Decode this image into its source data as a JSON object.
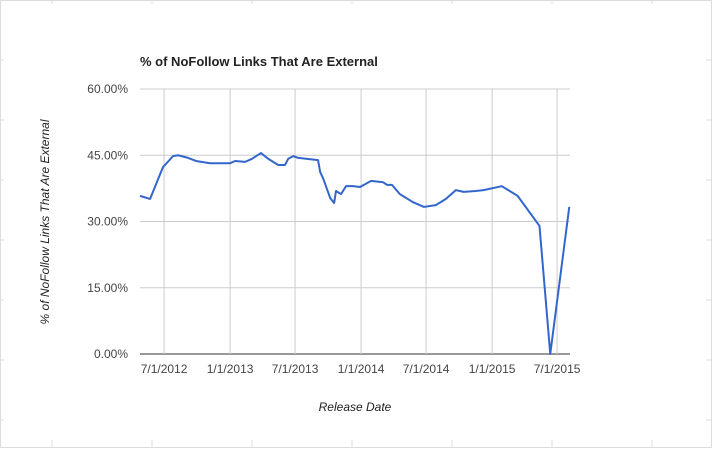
{
  "chart_data": {
    "type": "line",
    "title": "% of NoFollow Links That Are External",
    "y_label": "% of NoFollow Links That Are External",
    "x_label": "Release Date",
    "x": [
      "2012-04-25",
      "2012-05-23",
      "2012-06-28",
      "2012-07-26",
      "2012-08-09",
      "2012-09-06",
      "2012-09-28",
      "2012-11-06",
      "2013-01-01",
      "2013-01-15",
      "2013-02-12",
      "2013-03-03",
      "2013-03-28",
      "2013-04-17",
      "2013-05-15",
      "2013-06-03",
      "2013-06-12",
      "2013-06-26",
      "2013-07-10",
      "2013-09-03",
      "2013-09-09",
      "2013-09-17",
      "2013-10-07",
      "2013-10-18",
      "2013-10-23",
      "2013-11-06",
      "2013-11-20",
      "2013-12-10",
      "2013-12-29",
      "2014-01-29",
      "2014-03-03",
      "2014-03-14",
      "2014-03-28",
      "2014-04-19",
      "2014-05-25",
      "2014-06-25",
      "2014-07-28",
      "2014-08-25",
      "2014-09-22",
      "2014-10-14",
      "2014-11-16",
      "2014-12-08",
      "2015-01-28",
      "2015-03-13",
      "2015-05-13",
      "2015-06-12",
      "2015-08-04"
    ],
    "series": [
      {
        "name": "% of NoFollow Links That Are External",
        "color": "#3366cc",
        "values": [
          35.8,
          35.1,
          42.3,
          44.8,
          45.0,
          44.4,
          43.7,
          43.2,
          43.2,
          43.7,
          43.5,
          44.2,
          45.5,
          44.2,
          42.8,
          42.8,
          44.2,
          44.8,
          44.4,
          43.9,
          41.2,
          39.8,
          35.3,
          34.2,
          36.9,
          36.2,
          38.0,
          38.0,
          37.8,
          39.2,
          38.9,
          38.3,
          38.3,
          36.2,
          34.4,
          33.3,
          33.7,
          35.1,
          37.1,
          36.7,
          36.9,
          37.1,
          38.0,
          35.8,
          29.0,
          0,
          33.3
        ]
      }
    ],
    "xlim": [
      "2012-04-25",
      "2015-08-06"
    ],
    "xticks": [
      {
        "value": "2012-07-01",
        "label": "7/1/2012"
      },
      {
        "value": "2013-01-01",
        "label": "1/1/2013"
      },
      {
        "value": "2013-07-01",
        "label": "7/1/2013"
      },
      {
        "value": "2014-01-01",
        "label": "1/1/2014"
      },
      {
        "value": "2014-07-01",
        "label": "7/1/2014"
      },
      {
        "value": "2015-01-01",
        "label": "1/1/2015"
      },
      {
        "value": "2015-07-01",
        "label": "7/1/2015"
      }
    ],
    "ylim": [
      0,
      60
    ],
    "yticks": [
      {
        "value": 0,
        "label": "0.00%"
      },
      {
        "value": 15,
        "label": "15.00%"
      },
      {
        "value": 30,
        "label": "30.00%"
      },
      {
        "value": 45,
        "label": "45.00%"
      },
      {
        "value": 60,
        "label": "60.00%"
      }
    ],
    "grid": true
  }
}
